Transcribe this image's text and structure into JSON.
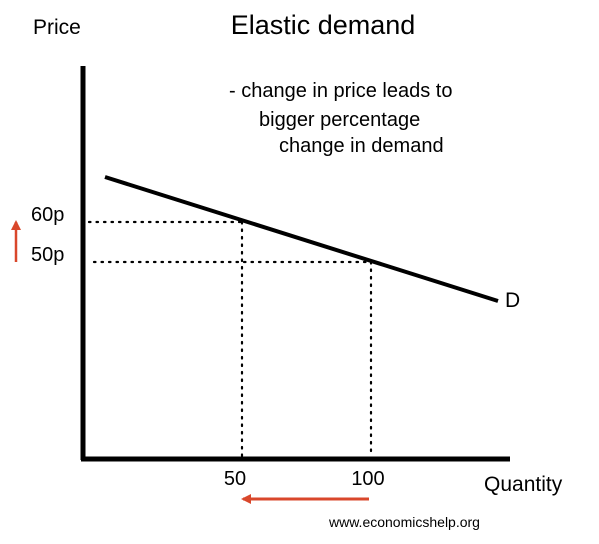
{
  "chart_data": {
    "type": "line",
    "title": "Elastic demand",
    "ylabel": "Price",
    "xlabel": "Quantity",
    "series": [
      {
        "name": "D",
        "points": [
          {
            "x": 50,
            "y": 60
          },
          {
            "x": 100,
            "y": 50
          }
        ]
      }
    ],
    "y_ticks": [
      "60p",
      "50p"
    ],
    "x_ticks": [
      "50",
      "100"
    ],
    "annotation": [
      "- change in price leads to",
      "bigger percentage",
      "change in demand"
    ],
    "arrow_color": "#d9472b",
    "guide_lines": "dotted"
  },
  "footer": {
    "credit": "www.economicshelp.org"
  },
  "colors": {
    "axis": "#000000",
    "curve": "#000000",
    "arrow": "#d9472b",
    "background": "#ffffff"
  }
}
